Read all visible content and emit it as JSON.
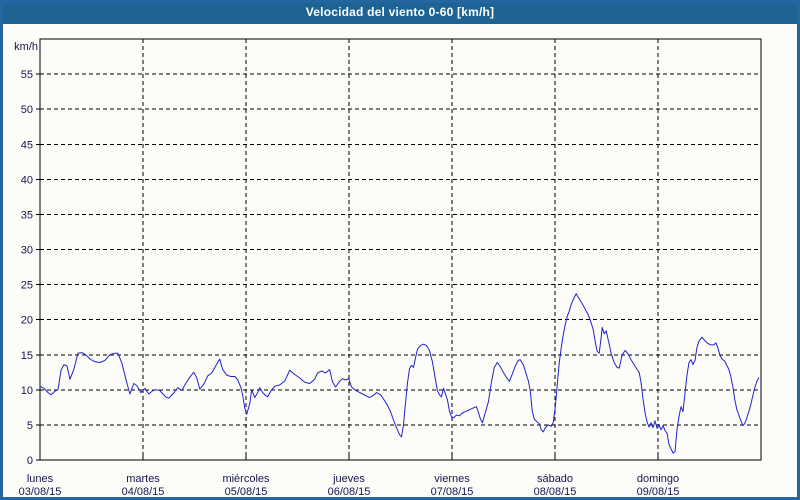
{
  "window": {
    "title": "Velocidad del viento 0-60 [km/h]"
  },
  "colors": {
    "title_bar": "#1d6394",
    "title_text": "#ffffff",
    "frame_border": "#24669f",
    "background": "#fcfdf9",
    "plot_border": "#000000",
    "grid": "#000000",
    "tick_text": "#15154f",
    "series": "#2222cb"
  },
  "chart_data": {
    "type": "line",
    "title": "Velocidad del viento 0-60 [km/h]",
    "ylabel": "km/h",
    "xlabel": "",
    "ylim": [
      0,
      60
    ],
    "y_ticks": [
      0,
      5,
      10,
      15,
      20,
      25,
      30,
      35,
      40,
      45,
      50,
      55
    ],
    "grid": "dashed",
    "legend": "none",
    "x_axis_days": [
      {
        "name": "lunes",
        "date": "03/08/15"
      },
      {
        "name": "martes",
        "date": "04/08/15"
      },
      {
        "name": "miércoles",
        "date": "05/08/15"
      },
      {
        "name": "jueves",
        "date": "06/08/15"
      },
      {
        "name": "viernes",
        "date": "07/08/15"
      },
      {
        "name": "sábado",
        "date": "08/08/15"
      },
      {
        "name": "domingo",
        "date": "09/08/15"
      }
    ],
    "series": [
      {
        "name": "velocidad del viento",
        "unit": "km/h",
        "color": "#2222cb",
        "points": [
          [
            0,
            10.5
          ],
          [
            0.039,
            10.2
          ],
          [
            0.078,
            9.6
          ],
          [
            0.107,
            9.3
          ],
          [
            0.145,
            9.8
          ],
          [
            0.175,
            10
          ],
          [
            0.204,
            12.8
          ],
          [
            0.233,
            13.6
          ],
          [
            0.262,
            13.4
          ],
          [
            0.291,
            11.5
          ],
          [
            0.33,
            13
          ],
          [
            0.368,
            15.2
          ],
          [
            0.407,
            15.3
          ],
          [
            0.446,
            15
          ],
          [
            0.485,
            14.4
          ],
          [
            0.533,
            14
          ],
          [
            0.582,
            13.9
          ],
          [
            0.63,
            14.2
          ],
          [
            0.679,
            15
          ],
          [
            0.717,
            15.2
          ],
          [
            0.756,
            15.2
          ],
          [
            0.795,
            13.8
          ],
          [
            0.834,
            11.5
          ],
          [
            0.873,
            9.4
          ],
          [
            0.911,
            10.9
          ],
          [
            0.94,
            10.6
          ],
          [
            0.979,
            9.6
          ],
          [
            1.018,
            10.2
          ],
          [
            1.057,
            9.4
          ],
          [
            1.096,
            9.9
          ],
          [
            1.134,
            10
          ],
          [
            1.163,
            9.9
          ],
          [
            1.192,
            9.4
          ],
          [
            1.222,
            9
          ],
          [
            1.251,
            8.8
          ],
          [
            1.289,
            9.4
          ],
          [
            1.338,
            10.3
          ],
          [
            1.377,
            9.9
          ],
          [
            1.415,
            10.9
          ],
          [
            1.454,
            11.8
          ],
          [
            1.493,
            12.5
          ],
          [
            1.522,
            11.7
          ],
          [
            1.551,
            10.1
          ],
          [
            1.59,
            10.8
          ],
          [
            1.629,
            12
          ],
          [
            1.667,
            12.4
          ],
          [
            1.706,
            13.4
          ],
          [
            1.745,
            14.4
          ],
          [
            1.774,
            12.9
          ],
          [
            1.813,
            12.1
          ],
          [
            1.852,
            11.9
          ],
          [
            1.891,
            11.9
          ],
          [
            1.92,
            11.4
          ],
          [
            1.949,
            10.4
          ],
          [
            1.968,
            9.2
          ],
          [
            1.988,
            7.4
          ],
          [
            2.007,
            6.5
          ],
          [
            2.036,
            8
          ],
          [
            2.055,
            10
          ],
          [
            2.084,
            8.9
          ],
          [
            2.113,
            9.6
          ],
          [
            2.133,
            10.3
          ],
          [
            2.162,
            9.6
          ],
          [
            2.181,
            9.3
          ],
          [
            2.21,
            9
          ],
          [
            2.24,
            9.8
          ],
          [
            2.278,
            10.5
          ],
          [
            2.327,
            10.7
          ],
          [
            2.375,
            11.2
          ],
          [
            2.424,
            12.8
          ],
          [
            2.472,
            12.2
          ],
          [
            2.521,
            11.7
          ],
          [
            2.569,
            11.1
          ],
          [
            2.618,
            10.9
          ],
          [
            2.666,
            11.5
          ],
          [
            2.695,
            12.4
          ],
          [
            2.734,
            12.7
          ],
          [
            2.773,
            12.4
          ],
          [
            2.812,
            12.9
          ],
          [
            2.841,
            11.1
          ],
          [
            2.87,
            10.4
          ],
          [
            2.909,
            11.2
          ],
          [
            2.938,
            11.6
          ],
          [
            2.967,
            11.4
          ],
          [
            2.996,
            11.6
          ],
          [
            3.025,
            10.4
          ],
          [
            3.054,
            10
          ],
          [
            3.093,
            9.7
          ],
          [
            3.132,
            9.4
          ],
          [
            3.17,
            9.1
          ],
          [
            3.199,
            8.9
          ],
          [
            3.238,
            9.2
          ],
          [
            3.267,
            9.6
          ],
          [
            3.306,
            9.3
          ],
          [
            3.335,
            8.7
          ],
          [
            3.374,
            7.8
          ],
          [
            3.403,
            6.9
          ],
          [
            3.432,
            5.7
          ],
          [
            3.461,
            4.6
          ],
          [
            3.49,
            3.6
          ],
          [
            3.51,
            3.3
          ],
          [
            3.529,
            5
          ],
          [
            3.548,
            8
          ],
          [
            3.568,
            11
          ],
          [
            3.587,
            13
          ],
          [
            3.606,
            13.5
          ],
          [
            3.626,
            13.2
          ],
          [
            3.645,
            14.5
          ],
          [
            3.665,
            15.8
          ],
          [
            3.694,
            16.3
          ],
          [
            3.723,
            16.5
          ],
          [
            3.752,
            16.3
          ],
          [
            3.781,
            15.6
          ],
          [
            3.81,
            14
          ],
          [
            3.839,
            11.5
          ],
          [
            3.858,
            9.9
          ],
          [
            3.878,
            9.3
          ],
          [
            3.897,
            9
          ],
          [
            3.917,
            10.2
          ],
          [
            3.936,
            9.4
          ],
          [
            3.955,
            8.6
          ],
          [
            3.975,
            7
          ],
          [
            3.994,
            6.2
          ],
          [
            4.014,
            6
          ],
          [
            4.043,
            6.4
          ],
          [
            4.072,
            6.3
          ],
          [
            4.101,
            6.7
          ],
          [
            4.13,
            6.9
          ],
          [
            4.159,
            7.1
          ],
          [
            4.188,
            7.3
          ],
          [
            4.217,
            7.5
          ],
          [
            4.237,
            7.6
          ],
          [
            4.256,
            6.8
          ],
          [
            4.275,
            5.9
          ],
          [
            4.295,
            5.3
          ],
          [
            4.324,
            6.8
          ],
          [
            4.353,
            8.3
          ],
          [
            4.382,
            11
          ],
          [
            4.411,
            13.2
          ],
          [
            4.44,
            13.9
          ],
          [
            4.469,
            13.3
          ],
          [
            4.498,
            12.5
          ],
          [
            4.527,
            11.8
          ],
          [
            4.557,
            11.2
          ],
          [
            4.586,
            12.3
          ],
          [
            4.615,
            13.4
          ],
          [
            4.644,
            14.2
          ],
          [
            4.663,
            14.3
          ],
          [
            4.692,
            13.6
          ],
          [
            4.721,
            12.2
          ],
          [
            4.741,
            11.3
          ],
          [
            4.76,
            9.8
          ],
          [
            4.779,
            7
          ],
          [
            4.799,
            5.8
          ],
          [
            4.828,
            5.4
          ],
          [
            4.847,
            5.2
          ],
          [
            4.867,
            4.3
          ],
          [
            4.886,
            4
          ],
          [
            4.905,
            4.6
          ],
          [
            4.934,
            5
          ],
          [
            4.963,
            4.8
          ],
          [
            4.983,
            5.3
          ],
          [
            5.002,
            7.5
          ],
          [
            5.022,
            10.8
          ],
          [
            5.041,
            13.8
          ],
          [
            5.06,
            16
          ],
          [
            5.08,
            17.8
          ],
          [
            5.099,
            19.3
          ],
          [
            5.119,
            20.5
          ],
          [
            5.138,
            21.2
          ],
          [
            5.158,
            22.2
          ],
          [
            5.187,
            23.2
          ],
          [
            5.206,
            23.7
          ],
          [
            5.225,
            23.2
          ],
          [
            5.254,
            22.5
          ],
          [
            5.283,
            21.8
          ],
          [
            5.303,
            21.2
          ],
          [
            5.322,
            20.7
          ],
          [
            5.341,
            20
          ],
          [
            5.371,
            18.6
          ],
          [
            5.39,
            16.9
          ],
          [
            5.409,
            15.5
          ],
          [
            5.429,
            15.2
          ],
          [
            5.448,
            17.4
          ],
          [
            5.458,
            18.9
          ],
          [
            5.477,
            18
          ],
          [
            5.497,
            18.4
          ],
          [
            5.526,
            16.5
          ],
          [
            5.545,
            15.2
          ],
          [
            5.574,
            13.9
          ],
          [
            5.603,
            13.2
          ],
          [
            5.623,
            13.1
          ],
          [
            5.652,
            15
          ],
          [
            5.681,
            15.6
          ],
          [
            5.71,
            15.1
          ],
          [
            5.739,
            14.3
          ],
          [
            5.768,
            13.6
          ],
          [
            5.797,
            12.9
          ],
          [
            5.817,
            12.5
          ],
          [
            5.836,
            11
          ],
          [
            5.855,
            8.6
          ],
          [
            5.875,
            6.7
          ],
          [
            5.894,
            5.4
          ],
          [
            5.913,
            4.7
          ],
          [
            5.933,
            5.3
          ],
          [
            5.952,
            4.6
          ],
          [
            5.971,
            5.6
          ],
          [
            5.991,
            4.5
          ],
          [
            6.01,
            5
          ],
          [
            6.03,
            4.3
          ],
          [
            6.049,
            4.9
          ],
          [
            6.068,
            4.2
          ],
          [
            6.088,
            3.8
          ],
          [
            6.107,
            2.2
          ],
          [
            6.126,
            1.6
          ],
          [
            6.146,
            1
          ],
          [
            6.165,
            1.2
          ],
          [
            6.184,
            4.3
          ],
          [
            6.204,
            6.2
          ],
          [
            6.223,
            7.6
          ],
          [
            6.243,
            6.9
          ],
          [
            6.262,
            9.5
          ],
          [
            6.281,
            12
          ],
          [
            6.301,
            13.9
          ],
          [
            6.32,
            14.3
          ],
          [
            6.339,
            13.6
          ],
          [
            6.359,
            14.2
          ],
          [
            6.378,
            16
          ],
          [
            6.397,
            16.9
          ],
          [
            6.426,
            17.5
          ],
          [
            6.455,
            17
          ],
          [
            6.484,
            16.6
          ],
          [
            6.514,
            16.4
          ],
          [
            6.543,
            16.4
          ],
          [
            6.562,
            16.7
          ],
          [
            6.581,
            16
          ],
          [
            6.601,
            15
          ],
          [
            6.62,
            14.4
          ],
          [
            6.649,
            14.1
          ],
          [
            6.668,
            13.5
          ],
          [
            6.688,
            12.9
          ],
          [
            6.707,
            11.9
          ],
          [
            6.727,
            10.4
          ],
          [
            6.746,
            8.6
          ],
          [
            6.765,
            7.2
          ],
          [
            6.785,
            6.4
          ],
          [
            6.804,
            5.6
          ],
          [
            6.824,
            4.9
          ],
          [
            6.843,
            5.2
          ],
          [
            6.862,
            6
          ],
          [
            6.882,
            6.9
          ],
          [
            6.901,
            7.9
          ],
          [
            6.921,
            9.2
          ],
          [
            6.94,
            10.3
          ],
          [
            6.96,
            11.2
          ],
          [
            6.979,
            11.7
          ]
        ]
      }
    ]
  }
}
